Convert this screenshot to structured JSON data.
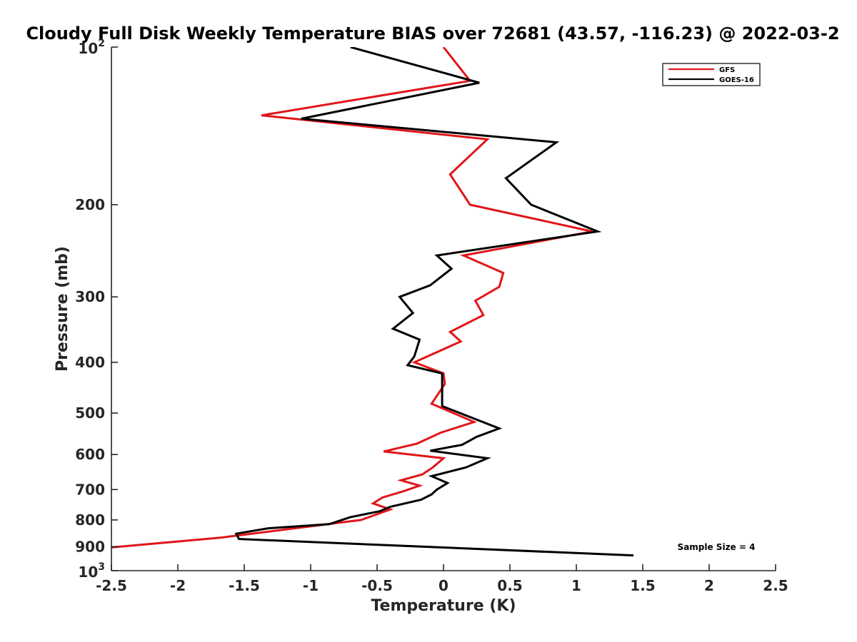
{
  "chart_data": {
    "type": "line",
    "title": "Cloudy Full Disk Weekly Temperature BIAS over 72681 (43.57, -116.23) @ 2022-03-2",
    "xlabel": "Temperature (K)",
    "ylabel": "Pressure (mb)",
    "xlim": [
      -2.5,
      2.5
    ],
    "ylim": [
      1000,
      100
    ],
    "y_scale": "log-reversed",
    "x_ticks": [
      "-2.5",
      "-2",
      "-1.5",
      "-1",
      "-0.5",
      "0",
      "0.5",
      "1",
      "1.5",
      "2",
      "2.5"
    ],
    "y_ticks": [
      {
        "value": 100,
        "base": "10",
        "exp": "2"
      },
      {
        "value": 200,
        "label": "200"
      },
      {
        "value": 300,
        "label": "300"
      },
      {
        "value": 400,
        "label": "400"
      },
      {
        "value": 500,
        "label": "500"
      },
      {
        "value": 600,
        "label": "600"
      },
      {
        "value": 700,
        "label": "700"
      },
      {
        "value": 800,
        "label": "800"
      },
      {
        "value": 900,
        "label": "900"
      },
      {
        "value": 1000,
        "base": "10",
        "exp": "3"
      }
    ],
    "legend_position": "top-right",
    "grid": false,
    "annotation": "Sample Size = 4",
    "series": [
      {
        "name": "GFS",
        "color": "#e0161a",
        "points": [
          [
            0,
            100
          ],
          [
            0.2,
            116
          ],
          [
            -1.37,
            135
          ],
          [
            0.33,
            150
          ],
          [
            0.05,
            175
          ],
          [
            0.2,
            200
          ],
          [
            1.12,
            225
          ],
          [
            0.15,
            250
          ],
          [
            0.45,
            270
          ],
          [
            0.42,
            287
          ],
          [
            0.24,
            305
          ],
          [
            0.3,
            325
          ],
          [
            0.05,
            350
          ],
          [
            0.13,
            365
          ],
          [
            -0.22,
            400
          ],
          [
            0,
            420
          ],
          [
            0.01,
            440
          ],
          [
            -0.09,
            480
          ],
          [
            0.23,
            520
          ],
          [
            -0.02,
            545
          ],
          [
            -0.2,
            572
          ],
          [
            -0.45,
            592
          ],
          [
            0,
            610
          ],
          [
            -0.08,
            635
          ],
          [
            -0.16,
            655
          ],
          [
            -0.32,
            672
          ],
          [
            -0.18,
            688
          ],
          [
            -0.3,
            705
          ],
          [
            -0.46,
            725
          ],
          [
            -0.53,
            744
          ],
          [
            -0.4,
            764
          ],
          [
            -0.62,
            800
          ],
          [
            -1.68,
            865
          ],
          [
            -2.55,
            905
          ]
        ]
      },
      {
        "name": "GOES-16",
        "color": "#000000",
        "points": [
          [
            -0.7,
            100
          ],
          [
            0.27,
            117
          ],
          [
            -1.07,
            137
          ],
          [
            0.85,
            152
          ],
          [
            0.47,
            178
          ],
          [
            0.66,
            200
          ],
          [
            1.16,
            225
          ],
          [
            -0.05,
            250
          ],
          [
            0.06,
            265
          ],
          [
            -0.1,
            285
          ],
          [
            -0.33,
            300
          ],
          [
            -0.23,
            322
          ],
          [
            -0.38,
            345
          ],
          [
            -0.18,
            362
          ],
          [
            -0.22,
            390
          ],
          [
            -0.27,
            405
          ],
          [
            -0.01,
            420
          ],
          [
            -0.01,
            440
          ],
          [
            -0.01,
            485
          ],
          [
            0.21,
            510
          ],
          [
            0.42,
            535
          ],
          [
            0.25,
            555
          ],
          [
            0.14,
            575
          ],
          [
            -0.1,
            590
          ],
          [
            0.33,
            610
          ],
          [
            0.17,
            635
          ],
          [
            -0.09,
            660
          ],
          [
            0.03,
            680
          ],
          [
            -0.05,
            700
          ],
          [
            -0.09,
            715
          ],
          [
            -0.17,
            732
          ],
          [
            -0.4,
            755
          ],
          [
            -0.48,
            770
          ],
          [
            -0.7,
            790
          ],
          [
            -0.86,
            815
          ],
          [
            -1.32,
            830
          ],
          [
            -1.56,
            850
          ],
          [
            -1.54,
            870
          ],
          [
            1.43,
            935
          ]
        ]
      }
    ]
  }
}
